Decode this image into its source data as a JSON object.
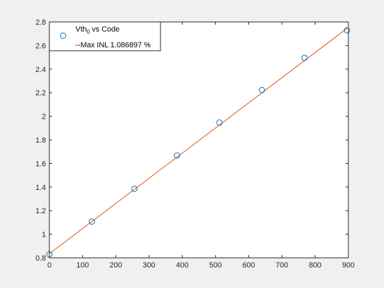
{
  "chart_data": {
    "type": "scatter",
    "title": "",
    "xlabel": "",
    "ylabel": "",
    "xlim": [
      0,
      900
    ],
    "ylim": [
      0.8,
      2.8
    ],
    "x_ticks": [
      0,
      100,
      200,
      300,
      400,
      500,
      600,
      700,
      800,
      900
    ],
    "y_ticks": [
      0.8,
      1,
      1.2,
      1.4,
      1.6,
      1.8,
      2,
      2.2,
      2.4,
      2.6,
      2.8
    ],
    "grid": false,
    "legend_position": "top-left",
    "series": [
      {
        "name": "Vth0 vs Code",
        "name_main": "Vth",
        "name_sub": "0",
        "name_rest": " vs Code",
        "type": "scatter",
        "marker": "circle-open",
        "color": "#0072bd",
        "x": [
          0,
          128,
          256,
          384,
          512,
          640,
          768,
          896
        ],
        "y": [
          0.83,
          1.107,
          1.385,
          1.668,
          1.947,
          2.222,
          2.496,
          2.729
        ]
      },
      {
        "name": "--Max INL 1.086897 %",
        "type": "line",
        "color": "#d95319",
        "x": [
          0,
          896
        ],
        "y": [
          0.835,
          2.745
        ]
      }
    ]
  }
}
